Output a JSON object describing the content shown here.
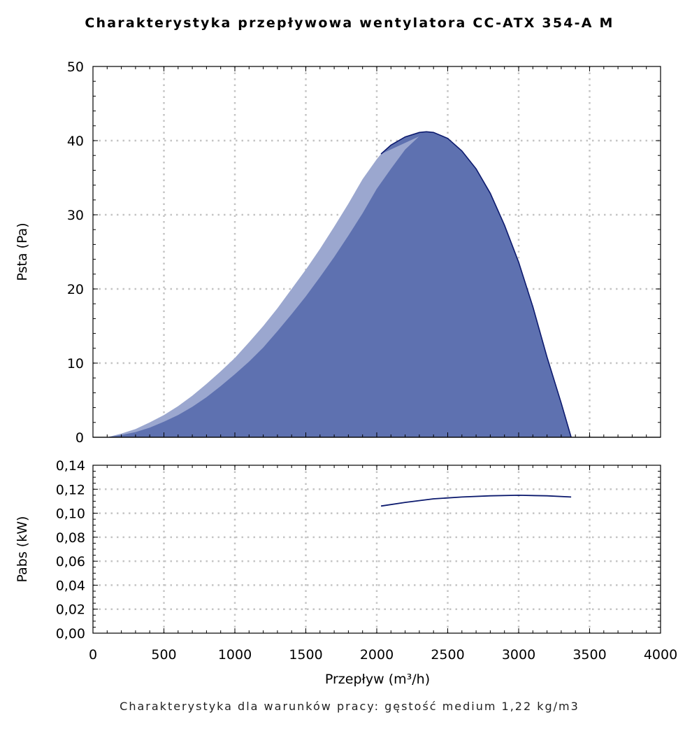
{
  "title": "Charakterystyka przepływowa wentylatora CC-ATX 354-A M",
  "note": "Charakterystyka dla warunków pracy: gęstość medium 1,22 kg/m3",
  "colors": {
    "fill_dark": "#5e71b0",
    "fill_light": "#9ba7cf",
    "line": "#0c1a6e",
    "grid": "#c4c4c4"
  },
  "chart_data": [
    {
      "type": "area",
      "panel": "top",
      "ylabel": "Psta (Pa)",
      "xlim": [
        0,
        4000
      ],
      "ylim": [
        0,
        50
      ],
      "grid": true,
      "yticks": [
        "0",
        "10",
        "20",
        "30",
        "40",
        "50"
      ],
      "series": [
        {
          "x": [
            100,
            200,
            300,
            400,
            500,
            600,
            700,
            800,
            900,
            1000,
            1100,
            1200,
            1300,
            1400,
            1500,
            1600,
            1700,
            1800,
            1900,
            2000,
            2100,
            2200,
            2300,
            2370
          ],
          "y": [
            0.0,
            0.3,
            0.7,
            1.3,
            2.1,
            3.0,
            4.1,
            5.4,
            6.9,
            8.5,
            10.2,
            12.1,
            14.3,
            16.6,
            19.0,
            21.6,
            24.3,
            27.2,
            30.2,
            33.5,
            36.2,
            38.8,
            40.6,
            41.2
          ]
        },
        {
          "x": [
            100,
            200,
            300,
            400,
            500,
            600,
            700,
            800,
            900,
            1000,
            1100,
            1200,
            1300,
            1400,
            1500,
            1600,
            1700,
            1800,
            1900,
            2000,
            2030
          ],
          "y": [
            0.0,
            0.5,
            1.1,
            2.0,
            3.0,
            4.2,
            5.6,
            7.2,
            8.9,
            10.7,
            12.8,
            15.0,
            17.4,
            20.0,
            22.6,
            25.4,
            28.4,
            31.5,
            34.8,
            37.5,
            38.2
          ]
        },
        {
          "x": [
            2030,
            2100,
            2200,
            2300,
            2350,
            2400,
            2500,
            2600,
            2700,
            2800,
            2900,
            3000,
            3100,
            3200,
            3300,
            3370
          ],
          "y": [
            38.2,
            39.4,
            40.5,
            41.1,
            41.2,
            41.1,
            40.3,
            38.6,
            36.2,
            32.9,
            28.6,
            23.6,
            17.6,
            10.8,
            4.6,
            0.0
          ]
        }
      ]
    },
    {
      "type": "line",
      "panel": "bottom",
      "xlabel": "Przepływ (m³/h)",
      "ylabel": "Pabs (kW)",
      "xlim": [
        0,
        4000
      ],
      "ylim": [
        0,
        0.14
      ],
      "grid": true,
      "xticks": [
        "0",
        "500",
        "1000",
        "1500",
        "2000",
        "2500",
        "3000",
        "3500",
        "4000"
      ],
      "yticks": [
        "0,00",
        "0,02",
        "0,04",
        "0,06",
        "0,08",
        "0,10",
        "0,12",
        "0,14"
      ],
      "series": [
        {
          "x": [
            2030,
            2200,
            2400,
            2600,
            2800,
            3000,
            3200,
            3370
          ],
          "y": [
            0.106,
            0.109,
            0.112,
            0.1135,
            0.1145,
            0.115,
            0.1145,
            0.1135
          ]
        }
      ]
    }
  ]
}
